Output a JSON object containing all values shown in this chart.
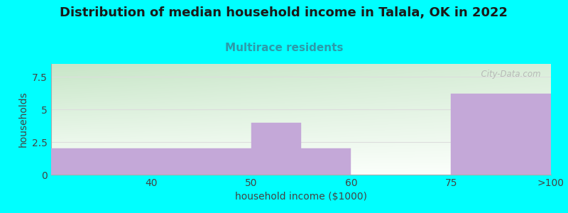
{
  "title": "Distribution of median household income in Talala, OK in 2022",
  "subtitle": "Multirace residents",
  "xlabel": "household income ($1000)",
  "ylabel": "households",
  "background_color": "#00FFFF",
  "bar_color": "#C4A8D8",
  "bar_edgecolor": "#C4A8D8",
  "categories": [
    "40",
    "50",
    "60",
    "75",
    ">100"
  ],
  "bar_heights": [
    2.0,
    4.0,
    2.0,
    0.0,
    6.2
  ],
  "xtick_labels": [
    "40",
    "50",
    "60",
    "75",
    ">100"
  ],
  "ylim": [
    0,
    8.5
  ],
  "yticks": [
    0,
    2.5,
    5,
    7.5
  ],
  "title_fontsize": 13,
  "subtitle_fontsize": 11,
  "label_fontsize": 10,
  "tick_fontsize": 10,
  "plot_bg_color_top_left": "#C8E6C0",
  "plot_bg_color_top_right": "#E8F0E8",
  "plot_bg_color_bottom": "#FAFFF8",
  "watermark": "  City-Data.com",
  "grid_color": "#DDDDDD"
}
